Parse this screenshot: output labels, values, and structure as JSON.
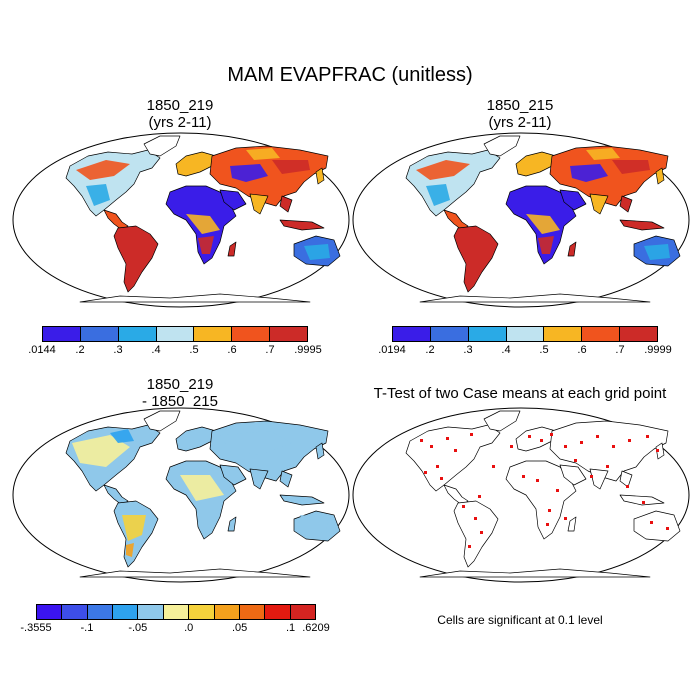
{
  "title": "MAM EVAPFRAC (unitless)",
  "panels": [
    {
      "title_line1": "1850_219",
      "title_line2": "(yrs 2-11)"
    },
    {
      "title_line1": "1850_215",
      "title_line2": "(yrs 2-11)"
    },
    {
      "title_line1": "1850_219",
      "title_line2": "- 1850_215"
    },
    {
      "title_line1": "T-Test of two Case means at each grid point",
      "title_line2": ""
    }
  ],
  "colorbars": {
    "case1": {
      "colors": [
        "#3a1de8",
        "#3a6ee0",
        "#2aaae6",
        "#bfe3f0",
        "#f7b623",
        "#f0541e",
        "#cc2b28"
      ],
      "labels": [
        ".0144",
        ".2",
        ".3",
        ".4",
        ".5",
        ".6",
        ".7",
        ".9995"
      ]
    },
    "case2": {
      "colors": [
        "#3a1de8",
        "#3a6ee0",
        "#2aaae6",
        "#bfe3f0",
        "#f7b623",
        "#f0541e",
        "#cc2b28"
      ],
      "labels": [
        ".0194",
        ".2",
        ".3",
        ".4",
        ".5",
        ".6",
        ".7",
        ".9999"
      ]
    },
    "diff": {
      "colors": [
        "#3b14f0",
        "#3d4ee8",
        "#3c78e6",
        "#2ea2ee",
        "#8fc8ea",
        "#f6f09a",
        "#f5d23c",
        "#f4a11d",
        "#ee6a14",
        "#e31a10",
        "#d42421"
      ],
      "labels": [
        "-.3555",
        "-.1",
        "-.05",
        ".0",
        ".05",
        ".1",
        ".6209"
      ]
    }
  },
  "significance_note": "Cells are significant at 0.1 level",
  "map_colors": {
    "ocean": "#ffffff",
    "coast": "#000000",
    "significant": "#e81010"
  }
}
